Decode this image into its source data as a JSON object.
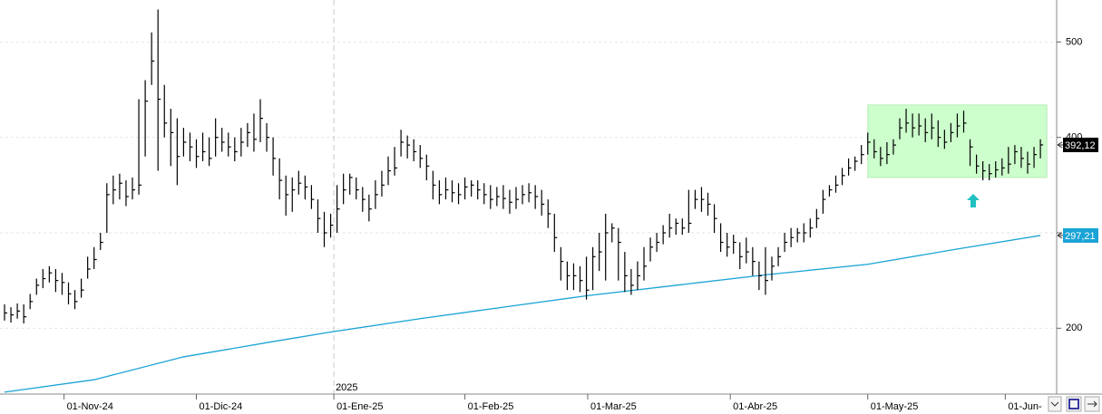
{
  "chart_data": {
    "type": "hlc",
    "series": [
      {
        "name": "high",
        "color": "#000000",
        "values": [
          225,
          222,
          226,
          225,
          236,
          252,
          262,
          265,
          262,
          258,
          248,
          240,
          252,
          275,
          285,
          300,
          352,
          360,
          362,
          355,
          358,
          440,
          460,
          510,
          534,
          455,
          430,
          420,
          410,
          405,
          398,
          405,
          400,
          420,
          410,
          405,
          400,
          410,
          415,
          425,
          440,
          415,
          400,
          378,
          360,
          358,
          365,
          360,
          350,
          335,
          322,
          320,
          350,
          362,
          362,
          358,
          348,
          340,
          355,
          365,
          380,
          390,
          408,
          402,
          398,
          392,
          382,
          365,
          355,
          358,
          355,
          352,
          358,
          355,
          355,
          352,
          350,
          348,
          350,
          345,
          348,
          350,
          352,
          350,
          345,
          335,
          320,
          285,
          270,
          268,
          265,
          275,
          285,
          300,
          320,
          310,
          305,
          280,
          262,
          270,
          285,
          295,
          300,
          308,
          320,
          315,
          315,
          345,
          345,
          348,
          342,
          330,
          310,
          300,
          298,
          290,
          295,
          285,
          270,
          285,
          275,
          285,
          300,
          305,
          305,
          310,
          315,
          325,
          345,
          350,
          360,
          368,
          378,
          380,
          392,
          405,
          398,
          390,
          395,
          398,
          420,
          430,
          425,
          425,
          420,
          425,
          418,
          408,
          415,
          425,
          428,
          398,
          382,
          375,
          372,
          375,
          378,
          390,
          392,
          390,
          385,
          390,
          398
        ]
      },
      {
        "name": "low",
        "color": "#000000",
        "values": [
          208,
          206,
          210,
          205,
          220,
          235,
          242,
          248,
          238,
          235,
          225,
          220,
          232,
          252,
          262,
          282,
          300,
          330,
          335,
          328,
          335,
          340,
          380,
          455,
          365,
          400,
          370,
          350,
          380,
          375,
          368,
          375,
          370,
          380,
          385,
          380,
          375,
          380,
          390,
          385,
          395,
          385,
          360,
          335,
          318,
          322,
          340,
          335,
          325,
          300,
          285,
          295,
          300,
          330,
          340,
          335,
          322,
          312,
          325,
          338,
          350,
          360,
          380,
          378,
          375,
          368,
          355,
          335,
          330,
          335,
          332,
          330,
          335,
          338,
          335,
          330,
          325,
          328,
          325,
          320,
          325,
          330,
          332,
          325,
          318,
          305,
          280,
          250,
          240,
          240,
          238,
          230,
          240,
          260,
          250,
          290,
          250,
          238,
          235,
          240,
          250,
          270,
          280,
          288,
          295,
          298,
          298,
          300,
          325,
          322,
          318,
          300,
          280,
          275,
          278,
          262,
          268,
          255,
          240,
          235,
          250,
          265,
          280,
          285,
          290,
          290,
          295,
          305,
          320,
          338,
          342,
          350,
          360,
          365,
          372,
          382,
          378,
          370,
          372,
          382,
          398,
          405,
          400,
          402,
          395,
          398,
          390,
          388,
          395,
          400,
          405,
          370,
          362,
          355,
          355,
          358,
          360,
          362,
          372,
          368,
          362,
          368,
          378
        ]
      },
      {
        "name": "close",
        "color": "#000000",
        "values": [
          216,
          214,
          218,
          212,
          228,
          245,
          252,
          258,
          250,
          248,
          236,
          228,
          240,
          262,
          272,
          290,
          340,
          345,
          352,
          338,
          345,
          350,
          438,
          480,
          440,
          415,
          405,
          380,
          395,
          390,
          380,
          385,
          378,
          400,
          395,
          390,
          385,
          395,
          405,
          398,
          420,
          400,
          378,
          355,
          340,
          345,
          352,
          348,
          335,
          315,
          300,
          308,
          325,
          345,
          358,
          345,
          335,
          325,
          340,
          350,
          365,
          368,
          395,
          392,
          385,
          378,
          370,
          350,
          340,
          345,
          342,
          340,
          348,
          350,
          345,
          340,
          335,
          338,
          336,
          332,
          335,
          340,
          342,
          338,
          330,
          320,
          295,
          270,
          255,
          255,
          250,
          240,
          275,
          280,
          300,
          305,
          290,
          255,
          245,
          255,
          265,
          285,
          290,
          300,
          305,
          310,
          305,
          310,
          335,
          335,
          330,
          315,
          290,
          285,
          290,
          275,
          280,
          270,
          255,
          250,
          265,
          275,
          290,
          295,
          300,
          300,
          305,
          315,
          335,
          345,
          350,
          360,
          368,
          375,
          382,
          395,
          385,
          378,
          382,
          392,
          410,
          415,
          410,
          412,
          405,
          410,
          400,
          395,
          405,
          412,
          415,
          390,
          370,
          365,
          362,
          366,
          368,
          372,
          385,
          378,
          372,
          382,
          392.12
        ],
        "last_label": {
          "value": 392.12,
          "label": "392,12"
        }
      }
    ],
    "moving_average": {
      "color": "#1aa3d6",
      "x": [
        0,
        14,
        28,
        42,
        51,
        65,
        79,
        91,
        105,
        119,
        135,
        149,
        162
      ],
      "values": [
        133,
        146,
        170,
        186,
        196,
        210,
        223,
        234,
        245,
        256,
        267,
        283,
        297.21
      ],
      "last_label": {
        "value": 297.21,
        "label": "297,21"
      }
    },
    "highlight": {
      "color": "#ccffcc",
      "x": [
        135,
        163
      ],
      "y": [
        358,
        434
      ]
    },
    "ylim": [
      131,
      544
    ],
    "yticks": [
      200,
      300,
      400,
      500
    ],
    "xlim": [
      0,
      163
    ],
    "xticks": [
      {
        "value": 9.3,
        "label": "01-Nov-24"
      },
      {
        "value": 30,
        "label": "01-Dic-24"
      },
      {
        "value": 51.5,
        "label": "01-Ene-25"
      },
      {
        "value": 72,
        "label": "01-Feb-25"
      },
      {
        "value": 91.2,
        "label": "01-Mar-25"
      },
      {
        "value": 113.5,
        "label": "01-Abr-25"
      },
      {
        "value": 135,
        "label": "01-May-25"
      },
      {
        "value": 156.5,
        "label": "01-Jun-"
      }
    ],
    "year_marker": {
      "value": 51.5,
      "label": "2025"
    },
    "grid": true
  }
}
